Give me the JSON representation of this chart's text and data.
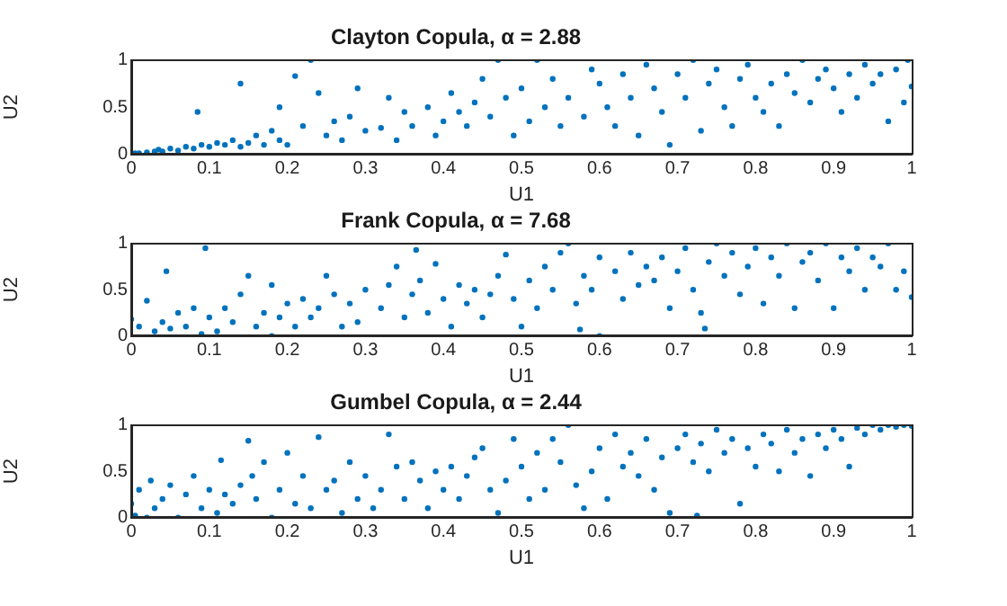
{
  "chart_data": [
    {
      "type": "scatter",
      "title": "Clayton Copula, α = 2.88",
      "xlabel": "U1",
      "ylabel": "U2",
      "color": "#0072bd",
      "marker": "circle",
      "xlim": [
        0,
        1
      ],
      "ylim": [
        0,
        1
      ],
      "xticks": [
        0,
        0.1,
        0.2,
        0.3,
        0.4,
        0.5,
        0.6,
        0.7,
        0.8,
        0.9,
        1
      ],
      "yticks": [
        0,
        0.5,
        1
      ],
      "x": [
        0.005,
        0.01,
        0.02,
        0.03,
        0.035,
        0.04,
        0.05,
        0.06,
        0.07,
        0.08,
        0.09,
        0.1,
        0.11,
        0.12,
        0.13,
        0.14,
        0.15,
        0.16,
        0.17,
        0.18,
        0.19,
        0.2,
        0.19,
        0.085,
        0.14,
        0.21,
        0.23,
        0.24,
        0.22,
        0.25,
        0.26,
        0.27,
        0.28,
        0.3,
        0.29,
        0.32,
        0.33,
        0.34,
        0.35,
        0.36,
        0.38,
        0.39,
        0.4,
        0.41,
        0.42,
        0.43,
        0.44,
        0.45,
        0.46,
        0.47,
        0.48,
        0.49,
        0.5,
        0.51,
        0.52,
        0.53,
        0.54,
        0.55,
        0.56,
        0.58,
        0.59,
        0.6,
        0.61,
        0.62,
        0.63,
        0.64,
        0.65,
        0.66,
        0.67,
        0.68,
        0.69,
        0.7,
        0.71,
        0.72,
        0.73,
        0.74,
        0.75,
        0.76,
        0.77,
        0.78,
        0.79,
        0.8,
        0.81,
        0.82,
        0.83,
        0.84,
        0.85,
        0.86,
        0.87,
        0.88,
        0.89,
        0.9,
        0.91,
        0.92,
        0.93,
        0.94,
        0.95,
        0.96,
        0.97,
        0.98,
        0.99,
        1.0,
        0.995
      ],
      "values": [
        0.01,
        0.01,
        0.02,
        0.03,
        0.05,
        0.03,
        0.06,
        0.04,
        0.08,
        0.06,
        0.1,
        0.08,
        0.12,
        0.1,
        0.15,
        0.08,
        0.12,
        0.2,
        0.1,
        0.25,
        0.15,
        0.1,
        0.5,
        0.45,
        0.75,
        0.83,
        1.0,
        0.65,
        0.3,
        0.2,
        0.35,
        0.15,
        0.4,
        0.25,
        0.7,
        0.28,
        0.6,
        0.15,
        0.45,
        0.3,
        0.5,
        0.2,
        0.35,
        0.65,
        0.45,
        0.3,
        0.55,
        0.8,
        0.4,
        1.0,
        0.6,
        0.2,
        0.7,
        0.35,
        1.0,
        0.5,
        0.8,
        0.3,
        0.6,
        0.4,
        0.9,
        0.75,
        0.5,
        0.3,
        0.85,
        0.6,
        0.2,
        0.95,
        0.7,
        0.45,
        0.1,
        0.85,
        0.6,
        1.0,
        0.25,
        0.75,
        0.9,
        0.5,
        0.3,
        0.8,
        0.95,
        0.6,
        0.45,
        0.75,
        0.3,
        0.85,
        0.65,
        1.0,
        0.55,
        0.8,
        0.9,
        0.7,
        0.45,
        0.85,
        0.6,
        0.95,
        0.75,
        0.85,
        0.35,
        0.9,
        0.55,
        0.72,
        1.0
      ]
    },
    {
      "type": "scatter",
      "title": "Frank Copula, α = 7.68",
      "xlabel": "U1",
      "ylabel": "U2",
      "color": "#0072bd",
      "marker": "circle",
      "xlim": [
        0,
        1
      ],
      "ylim": [
        0,
        1
      ],
      "xticks": [
        0,
        0.1,
        0.2,
        0.3,
        0.4,
        0.5,
        0.6,
        0.7,
        0.8,
        0.9,
        1
      ],
      "yticks": [
        0,
        0.5,
        1
      ],
      "x": [
        0.0,
        0.01,
        0.02,
        0.03,
        0.04,
        0.045,
        0.05,
        0.06,
        0.07,
        0.08,
        0.09,
        0.095,
        0.1,
        0.11,
        0.12,
        0.13,
        0.14,
        0.15,
        0.16,
        0.17,
        0.18,
        0.18,
        0.19,
        0.2,
        0.21,
        0.22,
        0.23,
        0.24,
        0.25,
        0.26,
        0.27,
        0.28,
        0.29,
        0.3,
        0.32,
        0.33,
        0.34,
        0.35,
        0.36,
        0.365,
        0.37,
        0.38,
        0.39,
        0.4,
        0.41,
        0.42,
        0.43,
        0.44,
        0.45,
        0.46,
        0.47,
        0.48,
        0.49,
        0.5,
        0.51,
        0.52,
        0.53,
        0.54,
        0.55,
        0.56,
        0.57,
        0.575,
        0.58,
        0.59,
        0.6,
        0.6,
        0.62,
        0.63,
        0.64,
        0.65,
        0.66,
        0.67,
        0.68,
        0.69,
        0.7,
        0.71,
        0.72,
        0.73,
        0.735,
        0.74,
        0.75,
        0.76,
        0.77,
        0.78,
        0.79,
        0.8,
        0.81,
        0.82,
        0.83,
        0.84,
        0.85,
        0.86,
        0.87,
        0.88,
        0.89,
        0.9,
        0.91,
        0.92,
        0.93,
        0.94,
        0.95,
        0.96,
        0.97,
        0.98,
        0.99,
        1.0
      ],
      "values": [
        0.18,
        0.1,
        0.38,
        0.05,
        0.15,
        0.7,
        0.08,
        0.25,
        0.1,
        0.3,
        0.02,
        0.95,
        0.2,
        0.05,
        0.3,
        0.15,
        0.45,
        0.65,
        0.1,
        0.25,
        0.0,
        0.55,
        0.2,
        0.35,
        0.1,
        0.4,
        0.2,
        0.3,
        0.65,
        0.45,
        0.1,
        0.35,
        0.15,
        0.5,
        0.3,
        0.55,
        0.75,
        0.2,
        0.45,
        0.93,
        0.6,
        0.25,
        0.78,
        0.4,
        0.1,
        0.55,
        0.35,
        0.5,
        0.2,
        0.45,
        0.65,
        0.88,
        0.4,
        0.1,
        0.6,
        0.3,
        0.75,
        0.5,
        0.9,
        1.0,
        0.35,
        0.07,
        0.65,
        0.5,
        0.0,
        0.85,
        0.7,
        0.4,
        0.9,
        0.55,
        0.75,
        0.6,
        0.85,
        0.3,
        0.7,
        0.95,
        0.5,
        0.25,
        0.08,
        0.8,
        1.0,
        0.65,
        0.9,
        0.45,
        0.75,
        0.95,
        0.35,
        0.85,
        0.65,
        1.0,
        0.3,
        0.8,
        0.9,
        0.6,
        1.0,
        0.3,
        0.85,
        0.7,
        0.95,
        0.5,
        0.85,
        0.75,
        1.0,
        0.5,
        0.7,
        0.42
      ]
    },
    {
      "type": "scatter",
      "title": "Gumbel Copula, α = 2.44",
      "xlabel": "U1",
      "ylabel": "U2",
      "color": "#0072bd",
      "marker": "circle",
      "xlim": [
        0,
        1
      ],
      "ylim": [
        0,
        1
      ],
      "xticks": [
        0,
        0.1,
        0.2,
        0.3,
        0.4,
        0.5,
        0.6,
        0.7,
        0.8,
        0.9,
        1
      ],
      "yticks": [
        0,
        0.5,
        1
      ],
      "x": [
        0.0,
        0.005,
        0.01,
        0.02,
        0.025,
        0.03,
        0.04,
        0.05,
        0.06,
        0.07,
        0.08,
        0.09,
        0.1,
        0.11,
        0.115,
        0.12,
        0.13,
        0.14,
        0.15,
        0.155,
        0.16,
        0.17,
        0.18,
        0.19,
        0.2,
        0.21,
        0.22,
        0.23,
        0.24,
        0.25,
        0.26,
        0.27,
        0.28,
        0.29,
        0.3,
        0.31,
        0.32,
        0.33,
        0.34,
        0.35,
        0.36,
        0.37,
        0.38,
        0.39,
        0.4,
        0.41,
        0.42,
        0.43,
        0.44,
        0.45,
        0.46,
        0.47,
        0.48,
        0.49,
        0.5,
        0.51,
        0.52,
        0.53,
        0.54,
        0.55,
        0.56,
        0.57,
        0.58,
        0.59,
        0.6,
        0.61,
        0.62,
        0.63,
        0.64,
        0.65,
        0.66,
        0.67,
        0.68,
        0.69,
        0.7,
        0.71,
        0.72,
        0.725,
        0.73,
        0.74,
        0.75,
        0.76,
        0.77,
        0.78,
        0.79,
        0.8,
        0.81,
        0.82,
        0.83,
        0.84,
        0.85,
        0.86,
        0.87,
        0.88,
        0.89,
        0.9,
        0.91,
        0.92,
        0.93,
        0.94,
        0.95,
        0.96,
        0.97,
        0.98,
        0.99,
        1.0
      ],
      "values": [
        0.15,
        0.02,
        0.3,
        0.0,
        0.4,
        0.1,
        0.2,
        0.35,
        0.0,
        0.25,
        0.45,
        0.1,
        0.3,
        0.05,
        0.62,
        0.25,
        0.15,
        0.35,
        0.83,
        0.45,
        0.2,
        0.6,
        0.0,
        0.3,
        0.7,
        0.15,
        0.45,
        0.1,
        0.87,
        0.3,
        0.4,
        0.05,
        0.6,
        0.2,
        0.45,
        0.1,
        0.3,
        0.9,
        0.55,
        0.2,
        0.6,
        0.4,
        0.1,
        0.5,
        0.3,
        0.55,
        0.2,
        0.45,
        0.65,
        0.75,
        0.3,
        0.05,
        0.4,
        0.85,
        0.55,
        0.2,
        0.7,
        0.3,
        0.85,
        0.6,
        1.0,
        0.35,
        0.1,
        0.5,
        0.75,
        0.2,
        0.9,
        0.55,
        0.7,
        0.45,
        0.85,
        0.3,
        0.65,
        0.05,
        0.75,
        0.9,
        0.6,
        0.02,
        0.8,
        0.5,
        0.95,
        0.7,
        0.85,
        0.15,
        0.75,
        0.55,
        0.9,
        0.8,
        0.5,
        0.95,
        0.7,
        0.85,
        0.45,
        0.9,
        0.75,
        0.95,
        0.85,
        0.55,
        0.97,
        0.9,
        1.0,
        0.95,
        1.0,
        0.98,
        1.0,
        0.99
      ]
    }
  ]
}
